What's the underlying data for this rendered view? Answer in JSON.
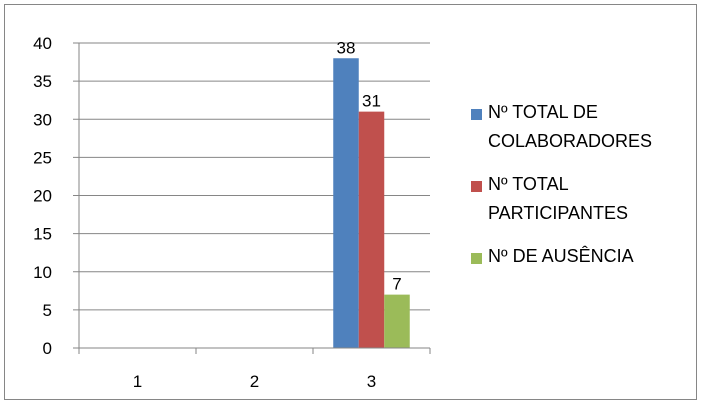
{
  "chart_data": {
    "type": "bar",
    "categories": [
      "1",
      "2",
      "3"
    ],
    "series": [
      {
        "name": "Nº TOTAL DE COLABORADORES",
        "values": [
          0,
          0,
          38
        ],
        "color": "#4F81BD"
      },
      {
        "name": "Nº TOTAL PARTICIPANTES",
        "values": [
          0,
          0,
          31
        ],
        "color": "#C0504D"
      },
      {
        "name": "Nº DE AUSÊNCIA",
        "values": [
          0,
          0,
          7
        ],
        "color": "#9BBB59"
      }
    ],
    "data_labels": [
      {
        "series": 0,
        "category": 2,
        "text": "38"
      },
      {
        "series": 1,
        "category": 2,
        "text": "31"
      },
      {
        "series": 2,
        "category": 2,
        "text": "7"
      }
    ],
    "yticks": [
      "0",
      "5",
      "10",
      "15",
      "20",
      "25",
      "30",
      "35",
      "40"
    ],
    "ylim": [
      0,
      40
    ],
    "grid": true,
    "legend_position": "right"
  }
}
